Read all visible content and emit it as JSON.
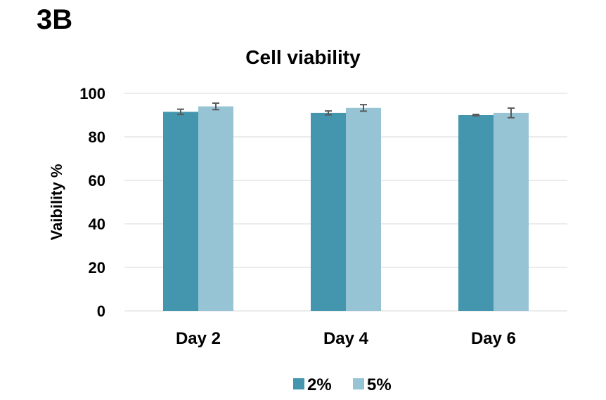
{
  "panel_label": "3B",
  "chart_data": {
    "type": "bar",
    "title": "Cell viability",
    "xlabel": "",
    "ylabel": "Vaibility %",
    "categories": [
      "Day 2",
      "Day 4",
      "Day 6"
    ],
    "series": [
      {
        "name": "2%",
        "values": [
          91.5,
          91.0,
          90.0
        ],
        "errors": [
          1.2,
          0.9,
          0.3
        ],
        "color": "#4396ad"
      },
      {
        "name": "5%",
        "values": [
          94.0,
          93.3,
          91.0
        ],
        "errors": [
          1.5,
          1.5,
          2.2
        ],
        "color": "#96c4d4"
      }
    ],
    "ylim": [
      0,
      100
    ],
    "yticks": [
      0,
      20,
      40,
      60,
      80,
      100
    ],
    "grid": true,
    "legend_position": "bottom",
    "colors": {
      "grid": "#d9d9d9",
      "error_bar": "#595959"
    }
  }
}
